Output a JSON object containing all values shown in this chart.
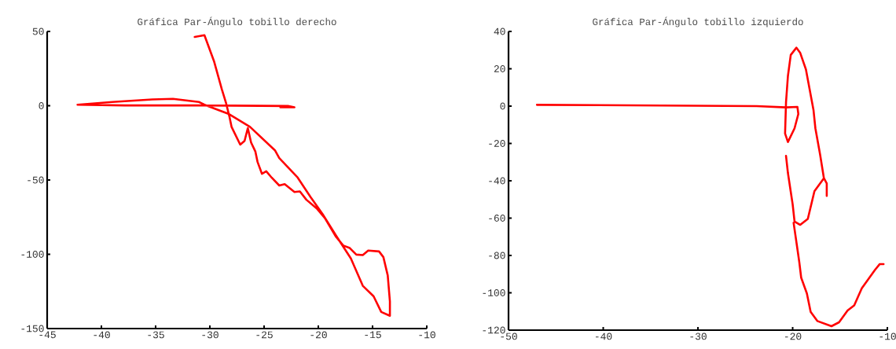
{
  "chart_data": [
    {
      "type": "line",
      "title": "Gráfica Par-Ángulo tobillo derecho",
      "xlim": [
        -45,
        -10
      ],
      "ylim": [
        -150,
        50
      ],
      "xticks": [
        -45,
        -40,
        -35,
        -30,
        -25,
        -20,
        -15,
        -10
      ],
      "yticks": [
        -150,
        -100,
        -50,
        0,
        50
      ],
      "series": [
        {
          "color": "#ff0000",
          "x": [
            -31.4,
            -30.5,
            -29.6,
            -28.9,
            -28.5,
            -28.2,
            -28.0,
            -27.2,
            -26.8,
            -26.5,
            -26.2,
            -25.8,
            -25.6,
            -25.2,
            -24.8,
            -24.3,
            -23.6,
            -23.1,
            -22.2,
            -21.7,
            -21.1,
            -20.1,
            -19.4,
            -18.4,
            -17.7,
            -17.1,
            -16.5,
            -15.9,
            -15.4,
            -14.4,
            -14.0,
            -13.6,
            -13.4,
            -13.4,
            -14.2,
            -14.9,
            -15.9,
            -17.0,
            -18.4,
            -19.6,
            -20.7,
            -21.9,
            -23.6,
            -24.0,
            -26.3,
            -28.3,
            -30.5,
            -31.0,
            -33.4,
            -35.3,
            -39.0,
            -42.2,
            -37.8,
            -30.5,
            -22.8,
            -22.2,
            -23.5
          ],
          "values": [
            46.3,
            47.5,
            29.6,
            11.2,
            1.6,
            -7.2,
            -14.2,
            -26.2,
            -23.7,
            -15.1,
            -24.7,
            -30.9,
            -37.9,
            -45.8,
            -44.1,
            -48.4,
            -53.7,
            -52.8,
            -58.1,
            -57.7,
            -63.3,
            -69.5,
            -75.6,
            -87.9,
            -94.1,
            -95.8,
            -100.2,
            -100.5,
            -97.5,
            -98.1,
            -101.9,
            -114.2,
            -131.7,
            -141.4,
            -138.8,
            -128.3,
            -121.2,
            -102.8,
            -87.0,
            -73.0,
            -61.6,
            -48.4,
            -35.3,
            -30.0,
            -14.2,
            -5.4,
            0.7,
            2.5,
            4.6,
            4.2,
            2.5,
            0.7,
            0.2,
            0.2,
            -0.2,
            -1.1,
            -1.1
          ]
        }
      ]
    },
    {
      "type": "line",
      "title": "Gráfica Par-Ángulo tobillo izquierdo",
      "xlim": [
        -50,
        -10
      ],
      "ylim": [
        -120,
        40
      ],
      "xticks": [
        -50,
        -40,
        -30,
        -20,
        -10
      ],
      "yticks": [
        -120,
        -100,
        -80,
        -60,
        -40,
        -20,
        0,
        20,
        40
      ],
      "series": [
        {
          "color": "#ff0000",
          "x": [
            -47.0,
            -23.8,
            -20.7,
            -19.5,
            -19.4,
            -19.8,
            -20.5,
            -20.8,
            -20.7,
            -20.5,
            -20.2,
            -19.6,
            -19.2,
            -18.6,
            -17.8,
            -17.6,
            -17.1,
            -16.7,
            -16.4,
            -16.4,
            null,
            -16.7,
            -17.7,
            -18.4,
            -19.2,
            -19.8,
            -20.0,
            -20.5,
            -20.7,
            null,
            -19.9,
            -19.3,
            -19.1,
            -18.5,
            -18.1,
            -17.4,
            -15.9,
            -15.1,
            -14.2,
            -13.5,
            -12.7,
            -11.3,
            -10.8,
            -10.4
          ],
          "values": [
            0.7,
            0,
            -0.7,
            -0.4,
            -4.2,
            -11.9,
            -19.2,
            -14.7,
            2.1,
            16.1,
            27.4,
            31.3,
            28.5,
            19.7,
            -2.1,
            -11.9,
            -26.0,
            -38.6,
            -41.4,
            -48.1,
            null,
            -38.6,
            -45.6,
            -60.4,
            -63.6,
            -61.8,
            -52.6,
            -35.8,
            -26.7,
            null,
            -62.5,
            -83.5,
            -91.9,
            -100.3,
            -110.2,
            -115.1,
            -117.9,
            -115.8,
            -109.5,
            -106.7,
            -97.6,
            -87.7,
            -84.6,
            -84.6
          ]
        }
      ]
    }
  ]
}
